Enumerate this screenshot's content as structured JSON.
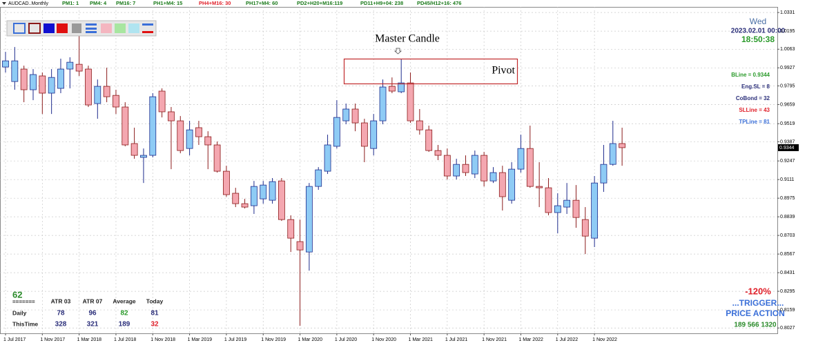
{
  "chart_data": {
    "type": "candlestick",
    "symbol": "AUDCAD..Monthly",
    "categories": [
      "1 Jul 2017",
      null,
      null,
      null,
      "1 Nov 2017",
      null,
      null,
      null,
      "1 Mar 2018",
      null,
      null,
      null,
      "1 Jul 2018",
      null,
      null,
      null,
      "1 Nov 2018",
      null,
      null,
      null,
      "1 Mar 2019",
      null,
      null,
      null,
      "1 Jul 2019",
      null,
      null,
      null,
      "1 Nov 2019",
      null,
      null,
      null,
      "1 Mar 2020",
      null,
      null,
      null,
      "1 Jul 2020",
      null,
      null,
      null,
      "1 Nov 2020",
      null,
      null,
      null,
      "1 Mar 2021",
      null,
      null,
      null,
      "1 Jul 2021",
      null,
      null,
      null,
      "1 Nov 2021",
      null,
      null,
      null,
      "1 Mar 2022",
      null,
      null,
      null,
      "1 Jul 2022",
      null,
      null,
      null,
      "1 Nov 2022",
      null,
      null,
      null
    ],
    "open": [
      0.9933,
      0.9827,
      0.9918,
      0.9767,
      0.9868,
      0.9742,
      0.9777,
      0.9918,
      0.9953,
      0.9918,
      0.9666,
      0.9792,
      0.9726,
      0.9641,
      0.9374,
      0.9273,
      0.9288,
      0.9757,
      0.9606,
      0.954,
      0.9338,
      0.949,
      0.9424,
      0.9364,
      0.9172,
      0.9011,
      0.8935,
      0.892,
      0.897,
      0.896,
      0.9101,
      0.8819,
      0.8658,
      0.8582,
      0.9061,
      0.9172,
      0.9354,
      0.954,
      0.9626,
      0.9525,
      0.9338,
      0.954,
      0.9792,
      0.9752,
      0.9817,
      0.954,
      0.9474,
      0.9323,
      0.9288,
      0.9137,
      0.9222,
      0.9152,
      0.9288,
      0.9101,
      0.9162,
      0.896,
      0.9187,
      0.9338,
      0.9061,
      0.9051,
      0.887,
      0.891,
      0.896,
      0.8819,
      0.8683,
      0.9086,
      0.9222,
      0.9374
    ],
    "high": [
      1.0044,
      1.0079,
      0.9943,
      0.9918,
      0.9893,
      0.9918,
      0.9994,
      1.0004,
      1.0195,
      0.9943,
      0.9842,
      0.9928,
      0.9767,
      0.9676,
      0.949,
      0.9338,
      0.9742,
      0.9777,
      0.9641,
      0.9575,
      0.954,
      0.954,
      0.9464,
      0.9389,
      0.9212,
      0.9051,
      0.897,
      0.9101,
      0.9101,
      0.9122,
      0.9122,
      0.885,
      0.8819,
      0.9086,
      0.9202,
      0.9439,
      0.9691,
      0.9666,
      0.9666,
      0.9555,
      0.959,
      0.9842,
      0.9857,
      0.9994,
      0.9893,
      0.9626,
      0.9505,
      0.9364,
      0.9338,
      0.9263,
      0.9288,
      0.9323,
      0.9313,
      0.9202,
      0.9212,
      0.9238,
      0.9439,
      0.9505,
      0.9238,
      0.9122,
      0.9011,
      0.9086,
      0.9071,
      0.891,
      0.9137,
      0.9364,
      0.954,
      0.949
    ],
    "low": [
      0.9893,
      0.9767,
      0.9676,
      0.9691,
      0.959,
      0.959,
      0.9742,
      0.9777,
      0.9868,
      0.9641,
      0.9555,
      0.9676,
      0.959,
      0.9354,
      0.9263,
      0.9086,
      0.9273,
      0.9565,
      0.9187,
      0.9303,
      0.9288,
      0.9364,
      0.9187,
      0.9162,
      0.8986,
      0.891,
      0.89,
      0.886,
      0.8935,
      0.8935,
      0.8809,
      0.8582,
      0.8043,
      0.8446,
      0.9036,
      0.9152,
      0.9338,
      0.9515,
      0.9464,
      0.9238,
      0.9288,
      0.9515,
      0.9742,
      0.9742,
      0.9525,
      0.9439,
      0.9313,
      0.9253,
      0.9112,
      0.9112,
      0.9137,
      0.9122,
      0.9061,
      0.9086,
      0.8885,
      0.8935,
      0.9162,
      0.9051,
      0.891,
      0.885,
      0.8718,
      0.886,
      0.8759,
      0.8567,
      0.8618,
      0.9021,
      0.9212,
      0.9212
    ],
    "close": [
      0.9978,
      0.9978,
      0.9767,
      0.9878,
      0.9742,
      0.9857,
      0.9918,
      0.9968,
      0.9903,
      0.9656,
      0.9792,
      0.9716,
      0.9641,
      0.9364,
      0.9288,
      0.9288,
      0.9716,
      0.9606,
      0.954,
      0.9323,
      0.9474,
      0.9424,
      0.9364,
      0.9172,
      0.9001,
      0.8935,
      0.891,
      0.9061,
      0.9071,
      0.9096,
      0.8819,
      0.8683,
      0.8597,
      0.9061,
      0.9182,
      0.9364,
      0.9565,
      0.9626,
      0.9525,
      0.9354,
      0.954,
      0.9787,
      0.9757,
      0.9817,
      0.954,
      0.9474,
      0.9323,
      0.9288,
      0.9137,
      0.9222,
      0.9162,
      0.9288,
      0.9101,
      0.9162,
      0.8986,
      0.9187,
      0.9338,
      0.9061,
      0.9051,
      0.887,
      0.892,
      0.896,
      0.8834,
      0.8698,
      0.9086,
      0.9222,
      0.9374,
      0.9344
    ],
    "up_color": "#8ecbf5",
    "up_edge": "#1c2a8c",
    "down_color": "#f4a7b0",
    "down_edge": "#8b1a1a",
    "ylim": [
      0.7988,
      1.0372
    ],
    "yticks": [
      1.0331,
      1.0195,
      1.0063,
      0.9927,
      0.9795,
      0.9659,
      0.9519,
      0.9387,
      0.9247,
      0.9111,
      0.8975,
      0.8839,
      0.8703,
      0.8567,
      0.8431,
      0.8295,
      0.8159,
      0.8027
    ],
    "grid": true,
    "last_price": 0.9344,
    "annotations": {
      "master": "Master Candle",
      "pivot": "Pivot"
    }
  },
  "header": [
    {
      "text": "PM1: 1",
      "color": "#1a7a1a"
    },
    {
      "text": "PM4: 4",
      "color": "#1a7a1a"
    },
    {
      "text": "PM16: 7",
      "color": "#1a7a1a"
    },
    {
      "text": "PH1+M4: 15",
      "color": "#1a7a1a"
    },
    {
      "text": "PH4+M16: 30",
      "color": "#e0202a"
    },
    {
      "text": "PH17+M4: 60",
      "color": "#1a7a1a"
    },
    {
      "text": "PD2+H20+M16:119",
      "color": "#1a7a1a"
    },
    {
      "text": "PD11+H9+04: 238",
      "color": "#1a7a1a"
    },
    {
      "text": "PD45/H12+16: 476",
      "color": "#1a7a1a"
    }
  ],
  "clock": {
    "day": "Wed",
    "date": "2023.02.01 00:00",
    "time": "18:50:38"
  },
  "lines": [
    {
      "text": "BLine = 0.9344",
      "color": "#2a9a2a"
    },
    {
      "text": "Eng.SL = 8",
      "color": "#2b2f7a"
    },
    {
      "text": "CoBond = 32",
      "color": "#2b2f7a"
    },
    {
      "text": "SLLine = 43",
      "color": "#e0202a"
    },
    {
      "text": "TPLine = 81",
      "color": "#3a6fd8"
    }
  ],
  "stats": {
    "score": 62,
    "rule": "=======",
    "columns": [
      "ATR 03",
      "ATR 07",
      "Average",
      "Today"
    ],
    "rows": [
      {
        "label": "Daily",
        "values": [
          78,
          96,
          82,
          81
        ],
        "colors": [
          "#2b2f7a",
          "#2b2f7a",
          "#2a9a2a",
          "#2b2f7a"
        ]
      },
      {
        "label": "ThisTime",
        "values": [
          328,
          321,
          189,
          32
        ],
        "colors": [
          "#2b2f7a",
          "#2b2f7a",
          "#2b2f7a",
          "#e0202a"
        ]
      }
    ]
  },
  "trigger": {
    "percent": "-120%",
    "label": "...TRIGGER...",
    "action": "PRICE ACTION",
    "numbers": "189 566 1320"
  }
}
